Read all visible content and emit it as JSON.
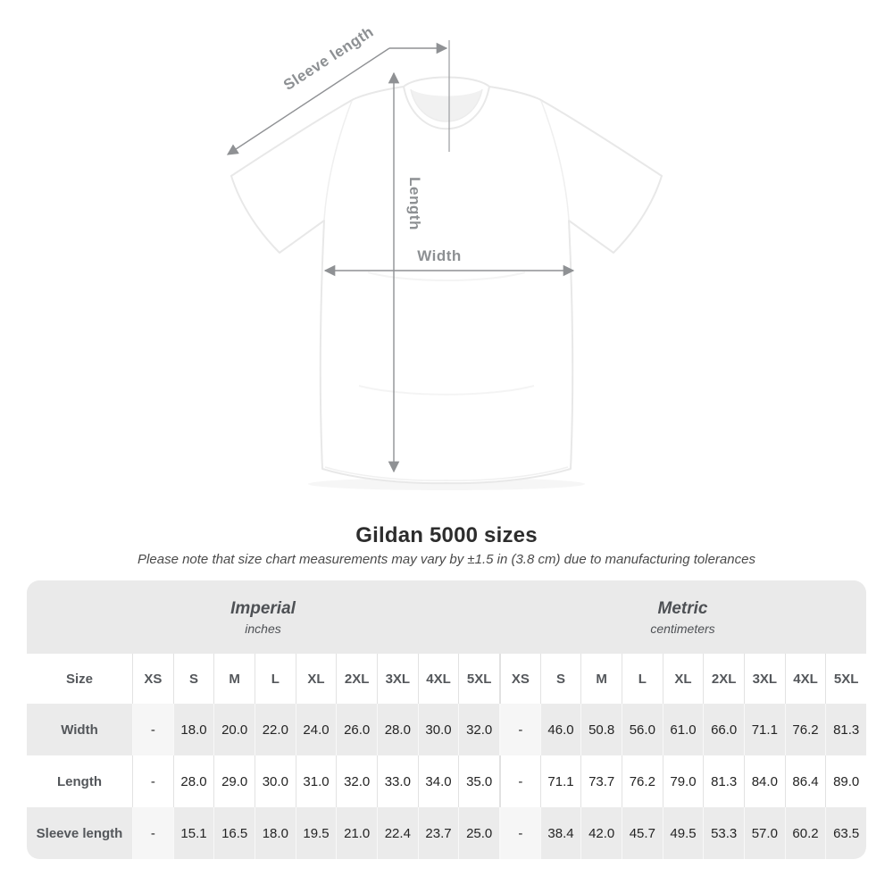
{
  "diagram": {
    "labels": {
      "sleeve_length": "Sleeve length",
      "length": "Length",
      "width": "Width"
    },
    "annotation_color": "#8f9194"
  },
  "heading": {
    "title": "Gildan 5000 sizes",
    "subtitle": "Please note that size chart measurements may vary by ±1.5 in (3.8 cm) due to manufacturing tolerances"
  },
  "table": {
    "groups": [
      {
        "title": "Imperial",
        "subtitle": "inches"
      },
      {
        "title": "Metric",
        "subtitle": "centimeters"
      }
    ],
    "size_column_label": "Size",
    "sizes": [
      "XS",
      "S",
      "M",
      "L",
      "XL",
      "2XL",
      "3XL",
      "4XL",
      "5XL"
    ],
    "rows": [
      {
        "label": "Width",
        "imperial": [
          "-",
          "18.0",
          "20.0",
          "22.0",
          "24.0",
          "26.0",
          "28.0",
          "30.0",
          "32.0"
        ],
        "metric": [
          "-",
          "46.0",
          "50.8",
          "56.0",
          "61.0",
          "66.0",
          "71.1",
          "76.2",
          "81.3"
        ]
      },
      {
        "label": "Length",
        "imperial": [
          "-",
          "28.0",
          "29.0",
          "30.0",
          "31.0",
          "32.0",
          "33.0",
          "34.0",
          "35.0"
        ],
        "metric": [
          "-",
          "71.1",
          "73.7",
          "76.2",
          "79.0",
          "81.3",
          "84.0",
          "86.4",
          "89.0"
        ]
      },
      {
        "label": "Sleeve length",
        "imperial": [
          "-",
          "15.1",
          "16.5",
          "18.0",
          "19.5",
          "21.0",
          "22.4",
          "23.7",
          "25.0"
        ],
        "metric": [
          "-",
          "38.4",
          "42.0",
          "45.7",
          "49.5",
          "53.3",
          "57.0",
          "60.2",
          "63.5"
        ]
      }
    ]
  },
  "colors": {
    "table_group_gray": "#eaeaea",
    "table_row_gray": "#ebebeb",
    "table_dim_cell": "#f6f6f6",
    "annotation_gray": "#8f9194",
    "title_text": "#2d2d2d"
  }
}
